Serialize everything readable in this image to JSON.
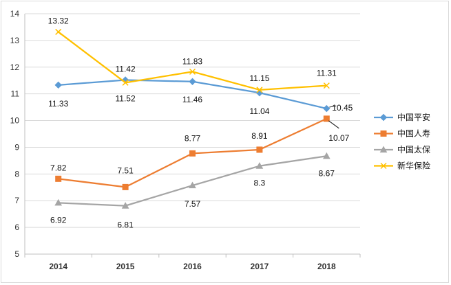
{
  "chart_data": {
    "type": "line",
    "title": "",
    "xlabel": "",
    "ylabel": "",
    "categories": [
      "2014",
      "2015",
      "2016",
      "2017",
      "2018"
    ],
    "ylim": [
      5,
      14
    ],
    "yticks": [
      "5",
      "6",
      "7",
      "8",
      "9",
      "10",
      "11",
      "12",
      "13",
      "14"
    ],
    "grid": "horizontal",
    "legend_position": "right",
    "series": [
      {
        "name": "中国平安",
        "values": [
          11.33,
          11.52,
          11.46,
          11.04,
          10.45
        ],
        "labels": [
          "11.33",
          "11.52",
          "11.46",
          "11.04",
          "10.45"
        ],
        "color": "#5b9bd5",
        "marker": "diamond"
      },
      {
        "name": "中国人寿",
        "values": [
          7.82,
          7.51,
          8.77,
          8.91,
          10.07
        ],
        "labels": [
          "7.82",
          "7.51",
          "8.77",
          "8.91",
          "10.07"
        ],
        "color": "#ed7d31",
        "marker": "square"
      },
      {
        "name": "中国太保",
        "values": [
          6.92,
          6.81,
          7.57,
          8.3,
          8.67
        ],
        "labels": [
          "6.92",
          "6.81",
          "7.57",
          "8.3",
          "8.67"
        ],
        "color": "#a5a5a5",
        "marker": "triangle"
      },
      {
        "name": "新华保险",
        "values": [
          13.32,
          11.42,
          11.83,
          11.15,
          11.31
        ],
        "labels": [
          "13.32",
          "11.42",
          "11.83",
          "11.15",
          "11.31"
        ],
        "color": "#ffc000",
        "marker": "x"
      }
    ]
  }
}
